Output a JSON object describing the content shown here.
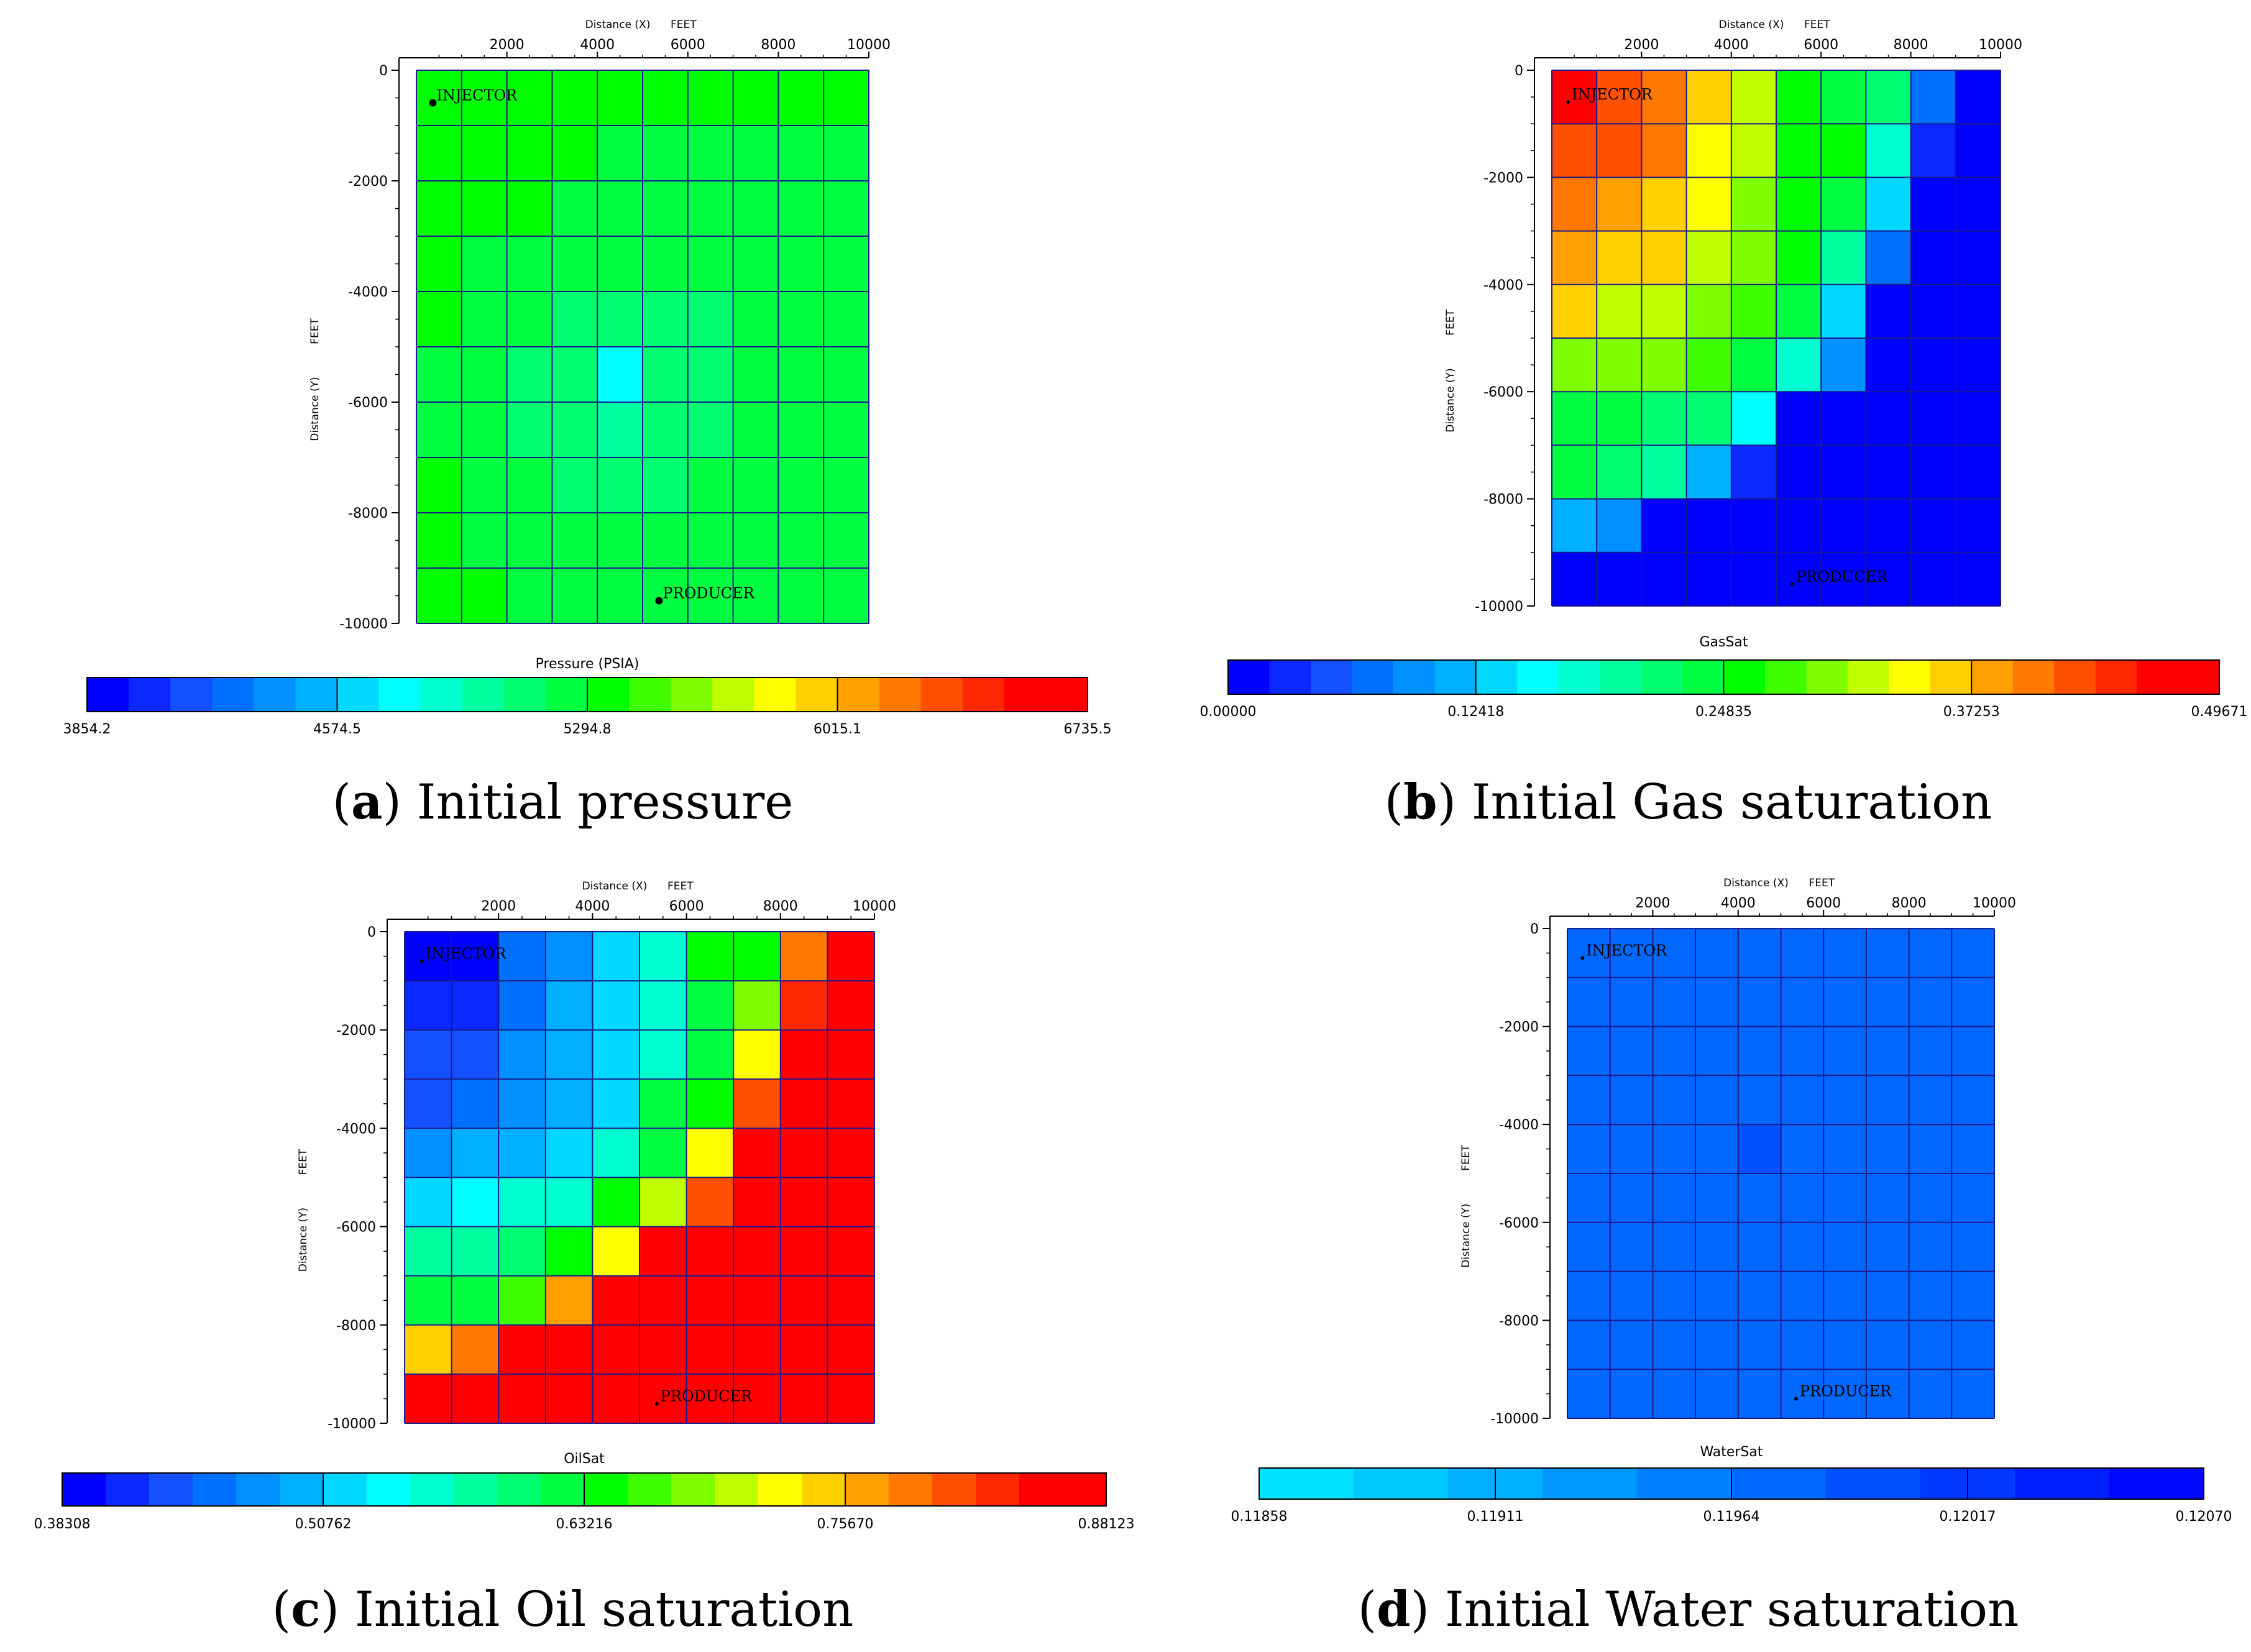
{
  "colormap_colors": [
    "#0000ff",
    "#0a28ff",
    "#1450ff",
    "#0070ff",
    "#0090ff",
    "#00b0ff",
    "#00d8ff",
    "#00ffff",
    "#00ffd0",
    "#00ffa0",
    "#00ff70",
    "#00ff40",
    "#00ff00",
    "#40ff00",
    "#80ff00",
    "#c0ff00",
    "#ffff00",
    "#ffd000",
    "#ffa000",
    "#ff7800",
    "#ff5000",
    "#ff2800",
    "#ff0000",
    "#ff0000"
  ],
  "water_colors": [
    "#00e0ff",
    "#00c8ff",
    "#00b0ff",
    "#0098ff",
    "#0080ff",
    "#0068ff",
    "#0050ff",
    "#0038ff",
    "#0020ff",
    "#0008ff"
  ],
  "chart_data": [
    {
      "id": "a",
      "type": "heatmap",
      "caption_letter": "a",
      "caption_text": "Initial pressure",
      "xlabel": "Distance (X)",
      "xunit": "FEET",
      "ylabel": "Distance (Y)",
      "yunit": "FEET",
      "xticks": [
        "2000",
        "4000",
        "6000",
        "8000",
        "10000"
      ],
      "yticks": [
        "0",
        "-2000",
        "-4000",
        "-6000",
        "-8000",
        "-10000"
      ],
      "xlim": [
        0,
        10000
      ],
      "ylim": [
        -10000,
        0
      ],
      "wells": [
        {
          "label": "INJECTOR",
          "x": 500,
          "y": -500
        },
        {
          "label": "PRODUCER",
          "x": 5500,
          "y": -9500
        }
      ],
      "colorbar_title": "Pressure (PSIA)",
      "colorbar_ticks": [
        "3854.2",
        "4574.5",
        "5294.8",
        "6015.1",
        "6735.5"
      ],
      "colorbar_range": [
        3854.2,
        6735.5
      ],
      "colormap": "jet",
      "grid": [
        [
          5380,
          5380,
          5360,
          5340,
          5320,
          5310,
          5310,
          5310,
          5310,
          5310
        ],
        [
          5360,
          5350,
          5330,
          5310,
          5290,
          5280,
          5280,
          5280,
          5280,
          5280
        ],
        [
          5340,
          5320,
          5300,
          5280,
          5260,
          5250,
          5250,
          5250,
          5250,
          5250
        ],
        [
          5320,
          5290,
          5260,
          5230,
          5200,
          5200,
          5210,
          5210,
          5220,
          5220
        ],
        [
          5300,
          5250,
          5200,
          5140,
          5090,
          5130,
          5170,
          5190,
          5200,
          5210
        ],
        [
          5290,
          5230,
          5150,
          5060,
          4800,
          5060,
          5150,
          5180,
          5200,
          5200
        ],
        [
          5290,
          5230,
          5160,
          5080,
          4980,
          5070,
          5150,
          5190,
          5200,
          5210
        ],
        [
          5300,
          5260,
          5210,
          5150,
          5090,
          5150,
          5190,
          5210,
          5220,
          5220
        ],
        [
          5310,
          5290,
          5260,
          5230,
          5200,
          5220,
          5230,
          5240,
          5240,
          5240
        ],
        [
          5320,
          5310,
          5290,
          5270,
          5240,
          5250,
          5260,
          5260,
          5260,
          5260
        ]
      ]
    },
    {
      "id": "b",
      "type": "heatmap",
      "caption_letter": "b",
      "caption_text": "Initial Gas saturation",
      "xlabel": "Distance (X)",
      "xunit": "FEET",
      "ylabel": "Distance (Y)",
      "yunit": "FEET",
      "xticks": [
        "2000",
        "4000",
        "6000",
        "8000",
        "10000"
      ],
      "yticks": [
        "0",
        "-2000",
        "-4000",
        "-6000",
        "-8000",
        "-10000"
      ],
      "xlim": [
        0,
        10000
      ],
      "ylim": [
        -10000,
        0
      ],
      "wells": [
        {
          "label": "INJECTOR",
          "x": 500,
          "y": -500
        },
        {
          "label": "PRODUCER",
          "x": 5500,
          "y": -9500
        }
      ],
      "colorbar_title": "GasSat",
      "colorbar_ticks": [
        "0.00000",
        "0.12418",
        "0.24835",
        "0.37253",
        "0.49671"
      ],
      "colorbar_range": [
        0,
        0.49671
      ],
      "colormap": "jet",
      "grid": [
        [
          0.475,
          0.43,
          0.41,
          0.37,
          0.33,
          0.26,
          0.24,
          0.22,
          0.08,
          0.01
        ],
        [
          0.43,
          0.43,
          0.4,
          0.35,
          0.32,
          0.26,
          0.25,
          0.18,
          0.04,
          0.0
        ],
        [
          0.41,
          0.39,
          0.37,
          0.35,
          0.3,
          0.26,
          0.24,
          0.13,
          0.0,
          0.0
        ],
        [
          0.39,
          0.37,
          0.36,
          0.33,
          0.29,
          0.25,
          0.2,
          0.08,
          0.0,
          0.0
        ],
        [
          0.36,
          0.33,
          0.33,
          0.3,
          0.27,
          0.24,
          0.13,
          0.02,
          0.0,
          0.0
        ],
        [
          0.3,
          0.3,
          0.29,
          0.28,
          0.23,
          0.17,
          0.09,
          0.0,
          0.0,
          0.0
        ],
        [
          0.24,
          0.23,
          0.22,
          0.22,
          0.15,
          0.0,
          0.0,
          0.0,
          0.0,
          0.0
        ],
        [
          0.23,
          0.21,
          0.19,
          0.11,
          0.03,
          0.0,
          0.0,
          0.0,
          0.0,
          0.0
        ],
        [
          0.11,
          0.09,
          0.01,
          0.0,
          0.0,
          0.0,
          0.0,
          0.0,
          0.0,
          0.0
        ],
        [
          0.0,
          0.0,
          0.0,
          0.0,
          0.0,
          0.0,
          0.0,
          0.0,
          0.0,
          0.0
        ]
      ]
    },
    {
      "id": "c",
      "type": "heatmap",
      "caption_letter": "c",
      "caption_text": "Initial Oil saturation",
      "xlabel": "Distance (X)",
      "xunit": "FEET",
      "ylabel": "Distance (Y)",
      "yunit": "FEET",
      "xticks": [
        "2000",
        "4000",
        "6000",
        "8000",
        "10000"
      ],
      "yticks": [
        "0",
        "-2000",
        "-4000",
        "-6000",
        "-8000",
        "-10000"
      ],
      "xlim": [
        0,
        10000
      ],
      "ylim": [
        -10000,
        0
      ],
      "wells": [
        {
          "label": "INJECTOR",
          "x": 500,
          "y": -500
        },
        {
          "label": "PRODUCER",
          "x": 5500,
          "y": -9500
        }
      ],
      "colorbar_title": "OilSat",
      "colorbar_ticks": [
        "0.38308",
        "0.50762",
        "0.63216",
        "0.75670",
        "0.88123"
      ],
      "colorbar_range": [
        0.38308,
        0.88123
      ],
      "colormap": "jet",
      "grid": [
        [
          0.39,
          0.4,
          0.45,
          0.48,
          0.51,
          0.56,
          0.64,
          0.64,
          0.78,
          0.87
        ],
        [
          0.41,
          0.41,
          0.45,
          0.49,
          0.51,
          0.55,
          0.63,
          0.69,
          0.82,
          0.88
        ],
        [
          0.43,
          0.44,
          0.47,
          0.49,
          0.51,
          0.56,
          0.63,
          0.73,
          0.86,
          0.88
        ],
        [
          0.44,
          0.46,
          0.48,
          0.5,
          0.52,
          0.62,
          0.65,
          0.8,
          0.87,
          0.88
        ],
        [
          0.47,
          0.49,
          0.5,
          0.51,
          0.55,
          0.63,
          0.72,
          0.86,
          0.88,
          0.88
        ],
        [
          0.51,
          0.54,
          0.55,
          0.56,
          0.64,
          0.71,
          0.8,
          0.88,
          0.88,
          0.88
        ],
        [
          0.57,
          0.59,
          0.61,
          0.64,
          0.72,
          0.88,
          0.88,
          0.88,
          0.88,
          0.88
        ],
        [
          0.62,
          0.62,
          0.66,
          0.76,
          0.84,
          0.88,
          0.88,
          0.88,
          0.88,
          0.88
        ],
        [
          0.75,
          0.79,
          0.84,
          0.87,
          0.88,
          0.88,
          0.88,
          0.88,
          0.88,
          0.88
        ],
        [
          0.86,
          0.87,
          0.88,
          0.88,
          0.88,
          0.88,
          0.88,
          0.88,
          0.88,
          0.86
        ]
      ]
    },
    {
      "id": "d",
      "type": "heatmap",
      "caption_letter": "d",
      "caption_text": "Initial Water saturation",
      "xlabel": "Distance (X)",
      "xunit": "FEET",
      "ylabel": "Distance (Y)",
      "yunit": "FEET",
      "xticks": [
        "2000",
        "4000",
        "6000",
        "8000",
        "10000"
      ],
      "yticks": [
        "0",
        "-2000",
        "-4000",
        "-6000",
        "-8000",
        "-10000"
      ],
      "xlim": [
        0,
        10000
      ],
      "ylim": [
        -10000,
        0
      ],
      "wells": [
        {
          "label": "INJECTOR",
          "x": 500,
          "y": -500
        },
        {
          "label": "PRODUCER",
          "x": 5500,
          "y": -9500
        }
      ],
      "colorbar_title": "WaterSat",
      "colorbar_ticks": [
        "0.11858",
        "0.11911",
        "0.11964",
        "0.12017",
        "0.12070"
      ],
      "colorbar_range": [
        0.11858,
        0.1207
      ],
      "colormap": "water",
      "grid": [
        [
          0.11975,
          0.11975,
          0.11975,
          0.11975,
          0.11975,
          0.11975,
          0.11975,
          0.11975,
          0.11975,
          0.11975
        ],
        [
          0.11975,
          0.11975,
          0.11975,
          0.11975,
          0.11975,
          0.11975,
          0.11975,
          0.11975,
          0.11975,
          0.11975
        ],
        [
          0.11975,
          0.11975,
          0.11975,
          0.11975,
          0.11975,
          0.11975,
          0.11975,
          0.11975,
          0.11975,
          0.11975
        ],
        [
          0.11975,
          0.11975,
          0.11975,
          0.11975,
          0.11975,
          0.11975,
          0.11975,
          0.11975,
          0.11975,
          0.11975
        ],
        [
          0.11975,
          0.11975,
          0.11975,
          0.11975,
          0.1199,
          0.11975,
          0.11975,
          0.11975,
          0.11975,
          0.11975
        ],
        [
          0.11975,
          0.11975,
          0.11975,
          0.11975,
          0.11975,
          0.11975,
          0.11975,
          0.11975,
          0.11975,
          0.11975
        ],
        [
          0.11975,
          0.11975,
          0.11975,
          0.11975,
          0.11975,
          0.11975,
          0.11975,
          0.11975,
          0.11975,
          0.11975
        ],
        [
          0.11975,
          0.11975,
          0.11975,
          0.11975,
          0.11975,
          0.11975,
          0.11975,
          0.11975,
          0.11975,
          0.11975
        ],
        [
          0.11975,
          0.11975,
          0.11975,
          0.11975,
          0.11975,
          0.11975,
          0.11975,
          0.11975,
          0.11975,
          0.11975
        ],
        [
          0.11975,
          0.11975,
          0.11975,
          0.11975,
          0.11975,
          0.11975,
          0.11975,
          0.11975,
          0.11975,
          0.11975
        ]
      ]
    }
  ]
}
